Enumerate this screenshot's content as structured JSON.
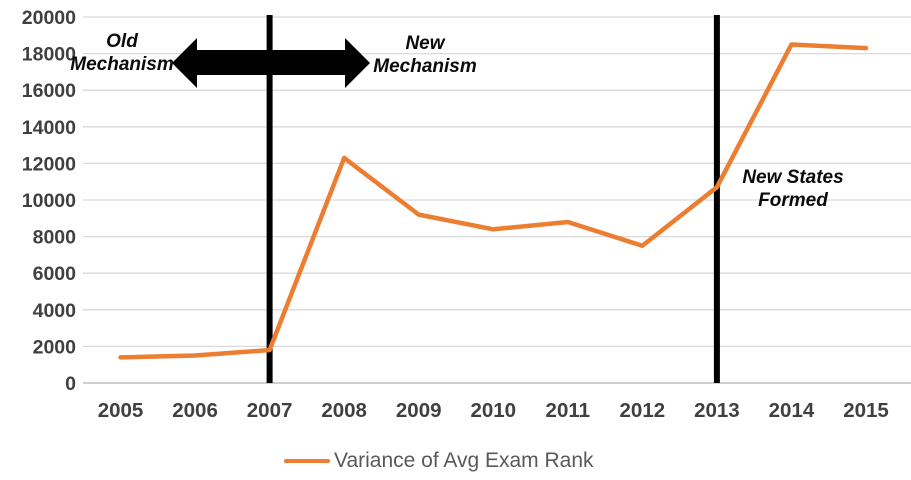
{
  "chart_data": {
    "type": "line",
    "title": "",
    "categories": [
      "2005",
      "2006",
      "2007",
      "2008",
      "2009",
      "2010",
      "2011",
      "2012",
      "2013",
      "2014",
      "2015"
    ],
    "series": [
      {
        "name": "Variance of Avg Exam Rank",
        "color": "#ED7D31",
        "values": [
          1400,
          1500,
          1800,
          12300,
          9200,
          8400,
          8800,
          7500,
          10700,
          18500,
          18300
        ]
      }
    ],
    "xlabel": "",
    "ylabel": "",
    "ylim": [
      0,
      20000
    ],
    "ytick_step": 2000,
    "yticks": [
      0,
      2000,
      4000,
      6000,
      8000,
      10000,
      12000,
      14000,
      16000,
      18000,
      20000
    ],
    "grid": "horizontal",
    "legend_position": "bottom-center",
    "vertical_lines": [
      {
        "at_category": "2007",
        "color": "#000000"
      },
      {
        "at_category": "2013",
        "color": "#000000"
      }
    ],
    "arrow": {
      "type": "double-headed-horizontal",
      "color": "#000000",
      "spans": "across 2007 divider between Old Mechanism and New Mechanism labels"
    },
    "annotations": [
      {
        "text": "Old\nMechanism"
      },
      {
        "text": "New\nMechanism"
      },
      {
        "text": "New States\nFormed"
      }
    ]
  },
  "colors": {
    "series_orange": "#ED7D31",
    "gridline": "#D9D9D9",
    "axis_line": "#BFBFBF",
    "tick_label": "#404040",
    "legend_text": "#595959",
    "annotation": "#000000"
  }
}
